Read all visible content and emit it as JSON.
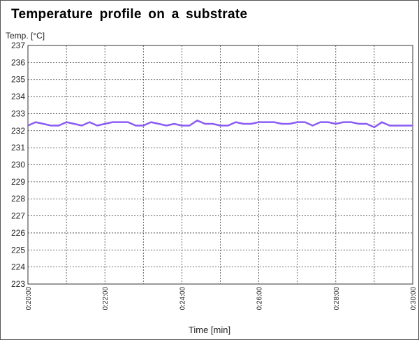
{
  "chart_data": {
    "type": "line",
    "title": "Temperature  profile on  a  substrate",
    "xlabel": "Time [min]",
    "ylabel": "Temp. [°C]",
    "ylim": [
      223,
      237
    ],
    "y_ticks": [
      223,
      224,
      225,
      226,
      227,
      228,
      229,
      230,
      231,
      232,
      233,
      234,
      235,
      236,
      237
    ],
    "x_range_minutes": [
      20,
      30
    ],
    "x_tick_labels": [
      "0:20:00",
      "0:22:00",
      "0:24:00",
      "0:26:00",
      "0:28:00",
      "0:30:00"
    ],
    "x_tick_minutes": [
      20,
      22,
      24,
      26,
      28,
      30
    ],
    "x_grid_minutes": [
      20,
      21,
      22,
      23,
      24,
      25,
      26,
      27,
      28,
      29,
      30
    ],
    "grid": true,
    "line_color": "#8b5cf6",
    "series": [
      {
        "x_minutes": [
          20.0,
          20.2,
          20.4,
          20.6,
          20.8,
          21.0,
          21.2,
          21.4,
          21.6,
          21.8,
          22.0,
          22.2,
          22.4,
          22.6,
          22.8,
          23.0,
          23.2,
          23.4,
          23.6,
          23.8,
          24.0,
          24.2,
          24.4,
          24.6,
          24.8,
          25.0,
          25.2,
          25.4,
          25.6,
          25.8,
          26.0,
          26.2,
          26.4,
          26.6,
          26.8,
          27.0,
          27.2,
          27.4,
          27.6,
          27.8,
          28.0,
          28.2,
          28.4,
          28.6,
          28.8,
          29.0,
          29.2,
          29.4,
          29.6,
          29.8,
          30.0
        ],
        "values": [
          232.3,
          232.5,
          232.4,
          232.3,
          232.3,
          232.5,
          232.4,
          232.3,
          232.5,
          232.3,
          232.4,
          232.5,
          232.5,
          232.5,
          232.3,
          232.3,
          232.5,
          232.4,
          232.3,
          232.4,
          232.3,
          232.3,
          232.6,
          232.4,
          232.4,
          232.3,
          232.3,
          232.5,
          232.4,
          232.4,
          232.5,
          232.5,
          232.5,
          232.4,
          232.4,
          232.5,
          232.5,
          232.3,
          232.5,
          232.5,
          232.4,
          232.5,
          232.5,
          232.4,
          232.4,
          232.2,
          232.5,
          232.3,
          232.3,
          232.3,
          232.3
        ]
      }
    ]
  }
}
